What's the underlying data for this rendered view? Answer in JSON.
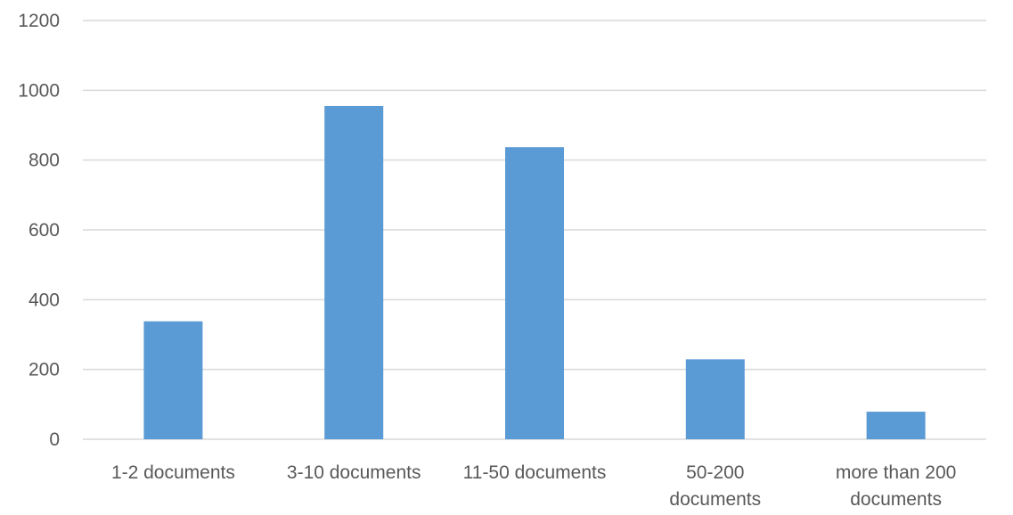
{
  "chart_data": {
    "type": "bar",
    "categories": [
      [
        "1-2 documents"
      ],
      [
        "3-10 documents"
      ],
      [
        "11-50 documents"
      ],
      [
        "50-200",
        "documents"
      ],
      [
        "more than 200",
        "documents"
      ]
    ],
    "values": [
      338,
      955,
      837,
      229,
      79
    ],
    "title": "",
    "xlabel": "",
    "ylabel": "",
    "ylim": [
      0,
      1200
    ],
    "yticks": [
      0,
      200,
      400,
      600,
      800,
      1000,
      1200
    ],
    "grid": true,
    "legend": "none",
    "bar_color": "#5b9bd5",
    "grid_color": "#d9d9d9",
    "text_color": "#595959"
  }
}
